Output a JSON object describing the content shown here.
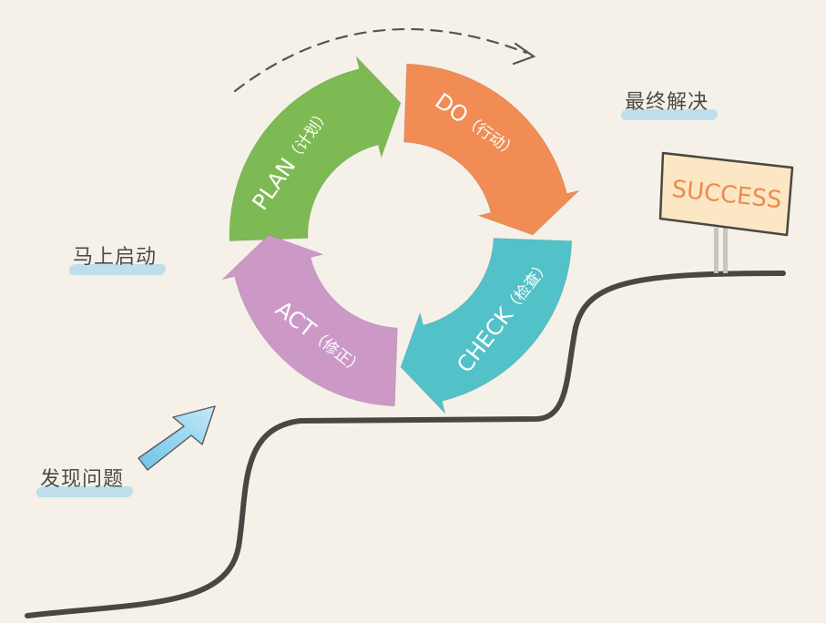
{
  "cycle": {
    "plan": {
      "label": "PLAN",
      "note": "（计划）",
      "color": "#7dba53"
    },
    "do": {
      "label": "DO",
      "note": "（行动）",
      "color": "#f08c54"
    },
    "check": {
      "label": "CHECK",
      "note": "（检查）",
      "color": "#52c2c8"
    },
    "act": {
      "label": "ACT",
      "note": "（修正）",
      "color": "#cc99c7"
    }
  },
  "steps": {
    "discover": "发现问题",
    "start": "马上启动",
    "resolve": "最终解决"
  },
  "sign": {
    "text": "SUCCESS",
    "text_color": "#f0894c",
    "board_color": "#fbe7c4"
  },
  "path_color": "#4a4644",
  "arrow_color": "#8fd3f0"
}
